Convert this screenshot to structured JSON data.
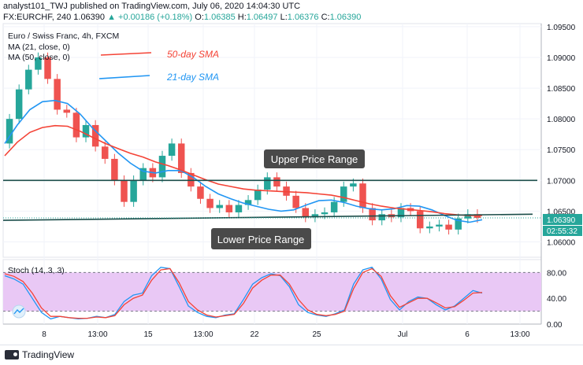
{
  "header": {
    "line1": "analyst101_TWJ published on TradingView.com, July 06, 2020 14:04:30 UTC",
    "symbol": "FX:EURCHF, 240",
    "price": "1.06390",
    "change": "▲ +0.00186 (+0.18%)",
    "ohlc_o": "O:",
    "ohlc_o_val": "1.06385",
    "ohlc_h": "H:",
    "ohlc_h_val": "1.06497",
    "ohlc_l": "L:",
    "ohlc_l_val": "1.06376",
    "ohlc_c": "C:",
    "ohlc_c_val": "1.06390"
  },
  "legend": {
    "title": "Euro / Swiss Franc, 4h, FXCM",
    "ma21": "MA (21, close, 0)",
    "ma50": "MA (50, close, 0)"
  },
  "annotations": {
    "sma50": "50-day SMA",
    "sma21": "21-day SMA",
    "upper": "Upper Price Range",
    "lower": "Lower Price Range"
  },
  "price_axis": {
    "ticks": [
      "1.09500",
      "1.09000",
      "1.08500",
      "1.08000",
      "1.07500",
      "1.07000",
      "1.06500",
      "1.06000"
    ],
    "current": "1.06390",
    "countdown": "02:55:32"
  },
  "stoch": {
    "label": "Stoch (14, 3, 3)",
    "ticks": [
      "80.00",
      "40.00",
      "0.00"
    ]
  },
  "time_axis": {
    "ticks": [
      "8",
      "13:00",
      "15",
      "13:00",
      "22",
      "25",
      "Jul",
      "6",
      "13:00"
    ]
  },
  "footer": {
    "brand": "TradingView"
  },
  "colors": {
    "bull": "#26a69a",
    "bear": "#ef5350",
    "sma50": "#f44336",
    "sma21": "#2196f3",
    "range_line": "#1b4d4a",
    "stoch_bg": "#e9c8f5",
    "stoch_k": "#2196f3",
    "stoch_d": "#f44336"
  },
  "chart_data": [
    {
      "type": "candlestick",
      "title": "Euro / Swiss Franc, 4h, FXCM",
      "ylim": [
        1.0575,
        1.0955
      ],
      "x_ticks": [
        "8",
        "13:00",
        "15",
        "13:00",
        "22",
        "25",
        "Jul",
        "6",
        "13:00"
      ],
      "series": [
        {
          "name": "MA (21, close, 0)",
          "values": [
            1.076,
            1.079,
            1.0815,
            1.0828,
            1.083,
            1.0825,
            1.0808,
            1.0785,
            1.0765,
            1.0745,
            1.0728,
            1.0715,
            1.0712,
            1.0716,
            1.0716,
            1.0705,
            1.069,
            1.0678,
            1.067,
            1.0663,
            1.0658,
            1.0653,
            1.065,
            1.0652,
            1.066,
            1.0667,
            1.0668,
            1.0664,
            1.0658,
            1.0654,
            1.0652,
            1.0654,
            1.0659,
            1.0658,
            1.0652,
            1.0643,
            1.0635,
            1.0632,
            1.0636
          ]
        },
        {
          "name": "MA (50, close, 0)",
          "values": [
            1.074,
            1.0762,
            1.0778,
            1.0786,
            1.0789,
            1.0788,
            1.078,
            1.077,
            1.076,
            1.0752,
            1.0744,
            1.0738,
            1.073,
            1.0724,
            1.0717,
            1.0709,
            1.0701,
            1.0694,
            1.069,
            1.0686,
            1.0684,
            1.0683,
            1.0682,
            1.0681,
            1.068,
            1.0678,
            1.0676,
            1.0672,
            1.0667,
            1.0662,
            1.0658,
            1.0655,
            1.0653,
            1.0651,
            1.0649,
            1.0646,
            1.0644,
            1.0643,
            1.0643
          ]
        }
      ],
      "candles": [
        [
          1.076,
          1.08
        ],
        [
          1.08,
          1.0848
        ],
        [
          1.0848,
          1.088
        ],
        [
          1.088,
          1.09
        ],
        [
          1.09,
          1.0865
        ],
        [
          1.0865,
          1.0815
        ],
        [
          1.0815,
          1.081
        ],
        [
          1.081,
          1.077
        ],
        [
          1.077,
          1.079
        ],
        [
          1.079,
          1.0755
        ],
        [
          1.0755,
          1.0735
        ],
        [
          1.0735,
          1.07
        ],
        [
          1.07,
          1.0665
        ],
        [
          1.0665,
          1.07
        ],
        [
          1.07,
          1.072
        ],
        [
          1.072,
          1.0705
        ],
        [
          1.0705,
          1.074
        ],
        [
          1.074,
          1.076
        ],
        [
          1.076,
          1.0712
        ],
        [
          1.0712,
          1.069
        ],
        [
          1.069,
          1.067
        ],
        [
          1.067,
          1.0655
        ],
        [
          1.0655,
          1.066
        ],
        [
          1.066,
          1.0648
        ],
        [
          1.0648,
          1.066
        ],
        [
          1.066,
          1.0668
        ],
        [
          1.0668,
          1.0685
        ],
        [
          1.0685,
          1.0705
        ],
        [
          1.0705,
          1.069
        ],
        [
          1.069,
          1.0675
        ],
        [
          1.0675,
          1.0655
        ],
        [
          1.0655,
          1.064
        ],
        [
          1.064,
          1.0645
        ],
        [
          1.0645,
          1.0648
        ],
        [
          1.0648,
          1.0665
        ],
        [
          1.0665,
          1.069
        ],
        [
          1.069,
          1.0695
        ],
        [
          1.0695,
          1.0655
        ],
        [
          1.0655,
          1.0635
        ],
        [
          1.0635,
          1.0645
        ],
        [
          1.0645,
          1.064
        ],
        [
          1.064,
          1.0655
        ],
        [
          1.0655,
          1.065
        ],
        [
          1.065,
          1.0622
        ],
        [
          1.0622,
          1.0625
        ],
        [
          1.0625,
          1.0628
        ],
        [
          1.0628,
          1.062
        ],
        [
          1.062,
          1.0638
        ],
        [
          1.0638,
          1.0645
        ],
        [
          1.0645,
          1.0639
        ]
      ],
      "lines": [
        {
          "name": "Upper Price Range",
          "y": 1.07
        },
        {
          "name": "Lower Price Range",
          "y_start": 1.0635,
          "y_end": 1.0645
        }
      ]
    },
    {
      "type": "line",
      "title": "Stoch (14, 3, 3)",
      "ylim": [
        0,
        100
      ],
      "y_ticks": [
        80,
        40,
        0
      ],
      "bands": [
        20,
        80
      ],
      "series": [
        {
          "name": "K",
          "values": [
            75,
            70,
            62,
            40,
            18,
            8,
            12,
            10,
            8,
            9,
            12,
            10,
            15,
            35,
            45,
            48,
            75,
            88,
            86,
            58,
            28,
            18,
            12,
            10,
            14,
            16,
            38,
            62,
            72,
            78,
            75,
            58,
            30,
            18,
            14,
            12,
            16,
            22,
            62,
            84,
            88,
            70,
            38,
            22,
            35,
            42,
            40,
            30,
            22,
            28,
            40,
            52,
            48
          ]
        },
        {
          "name": "D",
          "values": [
            78,
            74,
            66,
            48,
            25,
            12,
            12,
            10,
            9,
            9,
            11,
            10,
            13,
            30,
            40,
            45,
            68,
            84,
            86,
            64,
            35,
            22,
            14,
            11,
            13,
            15,
            32,
            56,
            68,
            76,
            76,
            62,
            38,
            22,
            15,
            13,
            15,
            20,
            55,
            80,
            86,
            74,
            44,
            26,
            33,
            40,
            40,
            33,
            25,
            27,
            37,
            48,
            49
          ]
        }
      ]
    }
  ]
}
